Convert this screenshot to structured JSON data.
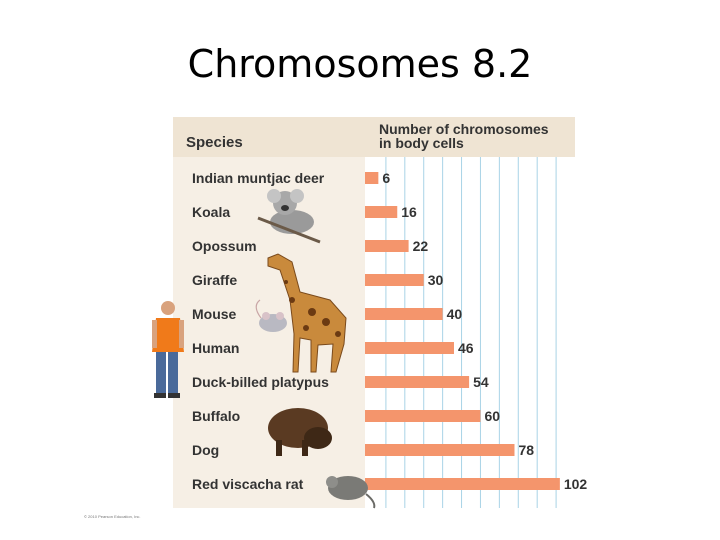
{
  "slide": {
    "title": "Chromosomes 8.2",
    "copyright": "© 2010 Pearson Education, Inc."
  },
  "chart_data": {
    "type": "bar",
    "orientation": "horizontal",
    "column_headers": {
      "category": "Species",
      "value": "Number of chromosomes in body cells"
    },
    "categories": [
      "Indian muntjac deer",
      "Koala",
      "Opossum",
      "Giraffe",
      "Mouse",
      "Human",
      "Duck-billed platypus",
      "Buffalo",
      "Dog",
      "Red viscacha rat"
    ],
    "values": [
      6,
      16,
      22,
      30,
      40,
      46,
      54,
      60,
      78,
      102
    ],
    "xlim": [
      0,
      110
    ],
    "grid": true,
    "data_labels": true,
    "colors": {
      "bar": "#f4956c",
      "header_bg": "#efe4d3",
      "label_panel_bg": "#f6efe5",
      "plot_bg": "#ffffff",
      "grid": "#a9d3e6"
    }
  },
  "illustrations": [
    {
      "name": "koala-photo",
      "depicts": "koala"
    },
    {
      "name": "giraffe-photo",
      "depicts": "giraffe"
    },
    {
      "name": "mouse-photo",
      "depicts": "mouse"
    },
    {
      "name": "human-photo",
      "depicts": "human"
    },
    {
      "name": "buffalo-photo",
      "depicts": "buffalo"
    },
    {
      "name": "rat-photo",
      "depicts": "red viscacha rat"
    }
  ]
}
